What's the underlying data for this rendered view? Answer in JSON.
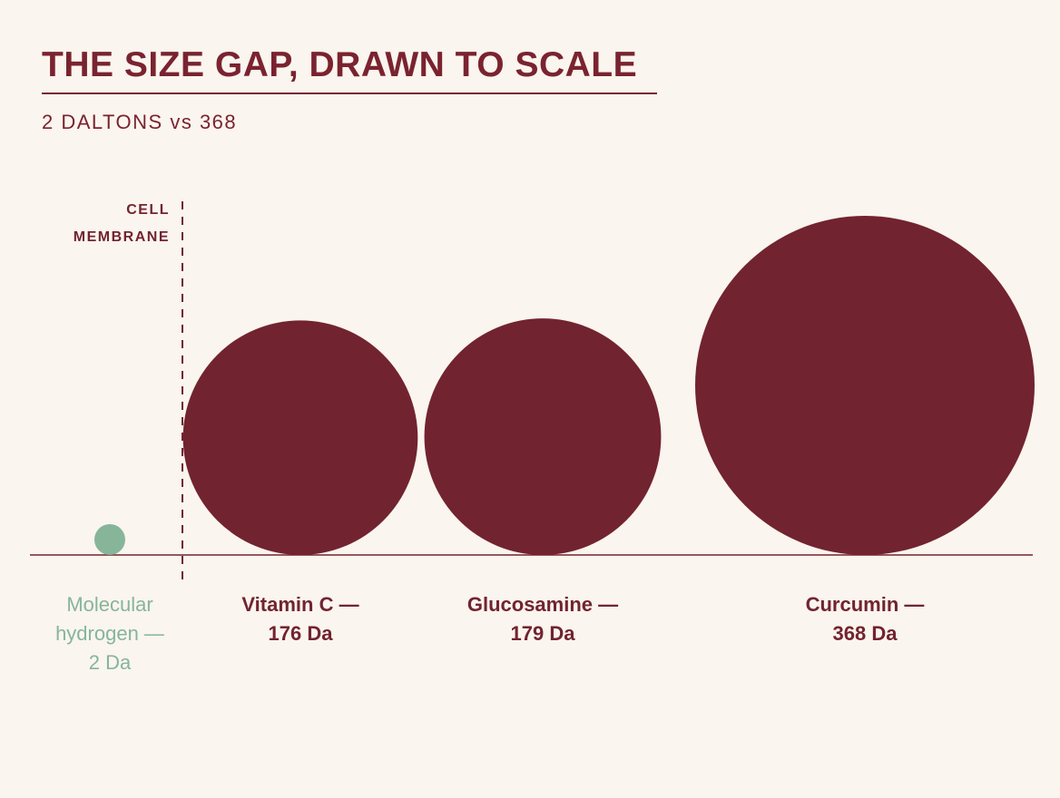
{
  "title": "THE SIZE GAP, DRAWN TO SCALE",
  "subtitle": "2 DALTONS vs 368",
  "colors": {
    "background": "#faf5ee",
    "accent": "#722330",
    "highlight": "#86b59a"
  },
  "chart_data": {
    "type": "bubble",
    "title": "THE SIZE GAP, DRAWN TO SCALE",
    "subtitle": "2 DALTONS vs 368",
    "unit": "Da",
    "annotations": [
      {
        "label_lines": [
          "CELL",
          "MEMBRANE"
        ]
      }
    ],
    "series": [
      {
        "label_lines": [
          "Molecular",
          "hydrogen —",
          "2 Da"
        ],
        "value": 2,
        "highlight": true
      },
      {
        "label_lines": [
          "Vitamin C —",
          "176 Da"
        ],
        "value": 176,
        "highlight": false
      },
      {
        "label_lines": [
          "Glucosamine —",
          "179 Da"
        ],
        "value": 179,
        "highlight": false
      },
      {
        "label_lines": [
          "Curcumin —",
          "368 Da"
        ],
        "value": 368,
        "highlight": false
      }
    ]
  }
}
